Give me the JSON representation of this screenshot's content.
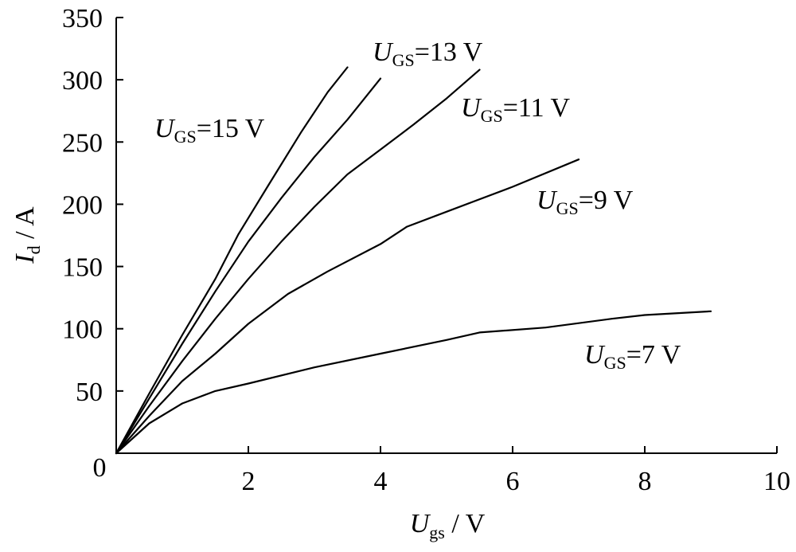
{
  "chart_data": {
    "type": "line",
    "x_axis": {
      "label_main": "U",
      "label_sub": "gs",
      "label_unit": " / V",
      "range": [
        0,
        10
      ],
      "ticks": [
        2,
        4,
        6,
        8,
        10
      ],
      "tick_labels": [
        "2",
        "4",
        "6",
        "8",
        "10"
      ]
    },
    "y_axis": {
      "label_main": "I",
      "label_sub": "d",
      "label_unit": " / A",
      "range": [
        0,
        350
      ],
      "ticks": [
        50,
        100,
        150,
        200,
        250,
        300,
        350
      ],
      "tick_labels": [
        "50",
        "100",
        "150",
        "200",
        "250",
        "300",
        "350"
      ]
    },
    "origin_label": "0",
    "grid": false,
    "series": [
      {
        "name": "UGS=15 V",
        "label": {
          "main": "U",
          "sub": "GS",
          "rest": "=15 V"
        },
        "points": [
          [
            0,
            0
          ],
          [
            0.5,
            48
          ],
          [
            1,
            95
          ],
          [
            1.5,
            140
          ],
          [
            1.85,
            176
          ],
          [
            2.3,
            215
          ],
          [
            2.8,
            258
          ],
          [
            3.2,
            290
          ],
          [
            3.5,
            310
          ]
        ]
      },
      {
        "name": "UGS=13 V",
        "label": {
          "main": "U",
          "sub": "GS",
          "rest": "=13 V"
        },
        "points": [
          [
            0,
            0
          ],
          [
            0.5,
            44
          ],
          [
            1,
            88
          ],
          [
            1.5,
            130
          ],
          [
            2,
            170
          ],
          [
            2.5,
            205
          ],
          [
            3,
            238
          ],
          [
            3.5,
            268
          ],
          [
            4,
            301
          ]
        ]
      },
      {
        "name": "UGS=11 V",
        "label": {
          "main": "U",
          "sub": "GS",
          "rest": "=11 V"
        },
        "points": [
          [
            0,
            0
          ],
          [
            0.5,
            38
          ],
          [
            1,
            74
          ],
          [
            1.5,
            108
          ],
          [
            2,
            140
          ],
          [
            2.5,
            170
          ],
          [
            3,
            198
          ],
          [
            3.5,
            224
          ],
          [
            4,
            244
          ],
          [
            4.5,
            264
          ],
          [
            5,
            285
          ],
          [
            5.5,
            308
          ]
        ]
      },
      {
        "name": "UGS=9 V",
        "label": {
          "main": "U",
          "sub": "GS",
          "rest": "=9 V"
        },
        "points": [
          [
            0,
            0
          ],
          [
            0.5,
            30
          ],
          [
            1,
            58
          ],
          [
            1.5,
            80
          ],
          [
            2,
            104
          ],
          [
            2.6,
            128
          ],
          [
            3.2,
            146
          ],
          [
            4,
            168
          ],
          [
            4.4,
            182
          ],
          [
            5,
            194
          ],
          [
            6,
            214
          ],
          [
            7,
            236
          ]
        ]
      },
      {
        "name": "UGS=7 V",
        "label": {
          "main": "U",
          "sub": "GS",
          "rest": "=7 V"
        },
        "points": [
          [
            0,
            0
          ],
          [
            0.5,
            24
          ],
          [
            1,
            40
          ],
          [
            1.5,
            50
          ],
          [
            2,
            56
          ],
          [
            3,
            69
          ],
          [
            4,
            80
          ],
          [
            5,
            91
          ],
          [
            5.5,
            97
          ],
          [
            6.5,
            101
          ],
          [
            7.5,
            108
          ],
          [
            8,
            111
          ],
          [
            9,
            114
          ]
        ]
      }
    ]
  }
}
